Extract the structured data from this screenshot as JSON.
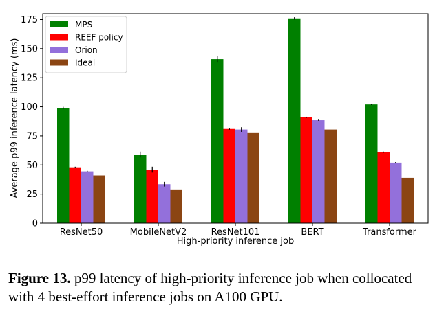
{
  "chart_data": {
    "type": "bar",
    "categories": [
      "ResNet50",
      "MobileNetV2",
      "ResNet101",
      "BERT",
      "Transformer"
    ],
    "series": [
      {
        "name": "MPS",
        "color": "#008000",
        "values": [
          99,
          59,
          141,
          176,
          102
        ],
        "errors": [
          1,
          2.5,
          3,
          1,
          0.5
        ]
      },
      {
        "name": "REEF policy",
        "color": "#ff0000",
        "values": [
          48,
          46,
          81,
          91,
          61
        ],
        "errors": [
          0.5,
          2.5,
          1,
          0.5,
          0.5
        ]
      },
      {
        "name": "Orion",
        "color": "#9370db",
        "values": [
          44.5,
          33.5,
          80.5,
          88.5,
          52
        ],
        "errors": [
          0.5,
          2,
          2,
          0.5,
          0.5
        ]
      },
      {
        "name": "Ideal",
        "color": "#8b4513",
        "values": [
          41,
          29,
          78,
          80.5,
          39
        ],
        "errors": [
          0,
          0,
          0,
          0,
          0
        ]
      }
    ],
    "xlabel": "High-priority inference job",
    "ylabel": "Average p99 inference latency (ms)",
    "ylim": [
      0,
      180
    ],
    "yticks": [
      0,
      25,
      50,
      75,
      100,
      125,
      150,
      175
    ],
    "grid": false,
    "legend_position": "top-left"
  },
  "caption": {
    "label": "Figure 13.",
    "text": " p99 latency of high-priority inference job when collocated with 4 best-effort inference jobs on A100 GPU."
  }
}
